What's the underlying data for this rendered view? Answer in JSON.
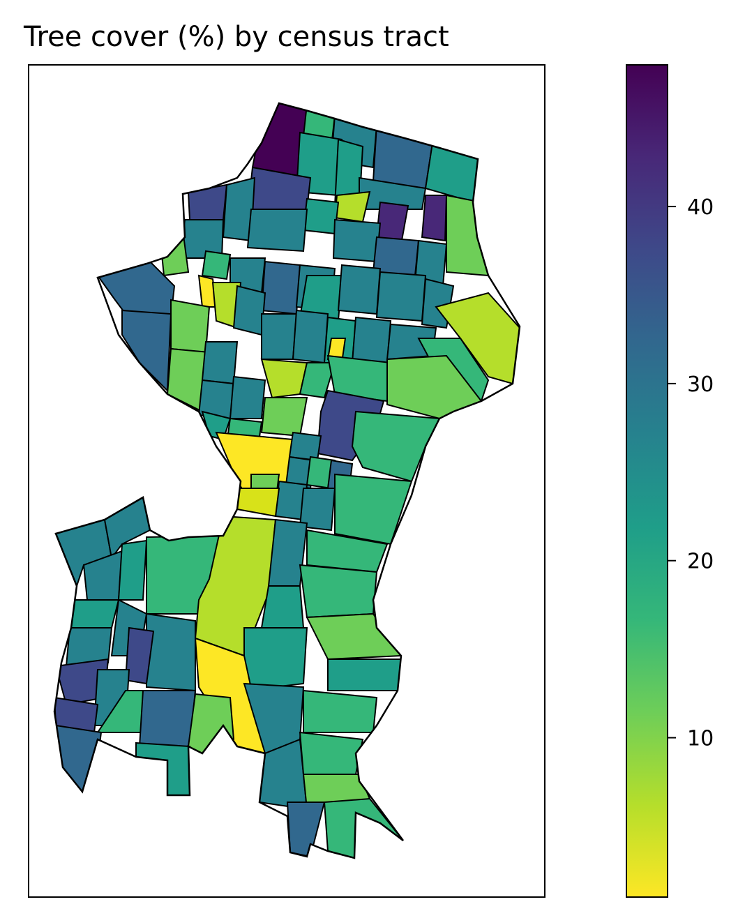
{
  "map": {
    "title": "Tree cover (%) by census tract"
  },
  "colorbar": {
    "colormap": "viridis_r",
    "range": [
      1,
      48
    ],
    "ticks": [
      {
        "value": 40,
        "label": "40"
      },
      {
        "value": 30,
        "label": "30"
      },
      {
        "value": 20,
        "label": "20"
      },
      {
        "value": 10,
        "label": "10"
      }
    ],
    "stops": [
      "#fde725",
      "#b5de2b",
      "#6ece58",
      "#35b779",
      "#1f9e89",
      "#26828e",
      "#31688e",
      "#3e4989",
      "#482878",
      "#440154"
    ]
  },
  "colors": {
    "outline": "#000000",
    "background": "#ffffff"
  }
}
